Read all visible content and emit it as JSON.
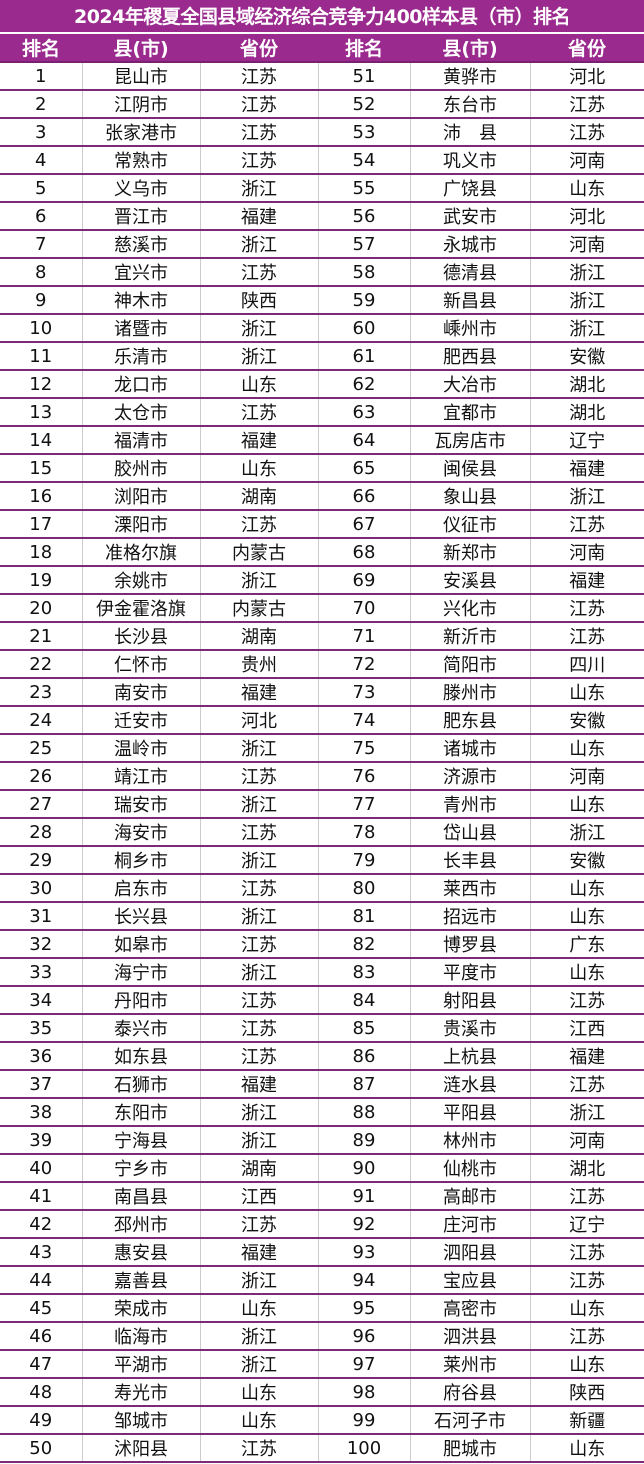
{
  "title": "2024年稷夏全国县域经济综合竞争力400样本县（市）排名",
  "headers": [
    "排名",
    "县(市)",
    "省份",
    "排名",
    "县(市)",
    "省份"
  ],
  "colors": {
    "header_bg": "#9a2a8e",
    "row_line": "#7a2a78"
  },
  "left": [
    [
      "1",
      "昆山市",
      "江苏"
    ],
    [
      "2",
      "江阴市",
      "江苏"
    ],
    [
      "3",
      "张家港市",
      "江苏"
    ],
    [
      "4",
      "常熟市",
      "江苏"
    ],
    [
      "5",
      "义乌市",
      "浙江"
    ],
    [
      "6",
      "晋江市",
      "福建"
    ],
    [
      "7",
      "慈溪市",
      "浙江"
    ],
    [
      "8",
      "宜兴市",
      "江苏"
    ],
    [
      "9",
      "神木市",
      "陕西"
    ],
    [
      "10",
      "诸暨市",
      "浙江"
    ],
    [
      "11",
      "乐清市",
      "浙江"
    ],
    [
      "12",
      "龙口市",
      "山东"
    ],
    [
      "13",
      "太仓市",
      "江苏"
    ],
    [
      "14",
      "福清市",
      "福建"
    ],
    [
      "15",
      "胶州市",
      "山东"
    ],
    [
      "16",
      "浏阳市",
      "湖南"
    ],
    [
      "17",
      "溧阳市",
      "江苏"
    ],
    [
      "18",
      "准格尔旗",
      "内蒙古"
    ],
    [
      "19",
      "余姚市",
      "浙江"
    ],
    [
      "20",
      "伊金霍洛旗",
      "内蒙古"
    ],
    [
      "21",
      "长沙县",
      "湖南"
    ],
    [
      "22",
      "仁怀市",
      "贵州"
    ],
    [
      "23",
      "南安市",
      "福建"
    ],
    [
      "24",
      "迁安市",
      "河北"
    ],
    [
      "25",
      "温岭市",
      "浙江"
    ],
    [
      "26",
      "靖江市",
      "江苏"
    ],
    [
      "27",
      "瑞安市",
      "浙江"
    ],
    [
      "28",
      "海安市",
      "江苏"
    ],
    [
      "29",
      "桐乡市",
      "浙江"
    ],
    [
      "30",
      "启东市",
      "江苏"
    ],
    [
      "31",
      "长兴县",
      "浙江"
    ],
    [
      "32",
      "如皋市",
      "江苏"
    ],
    [
      "33",
      "海宁市",
      "浙江"
    ],
    [
      "34",
      "丹阳市",
      "江苏"
    ],
    [
      "35",
      "泰兴市",
      "江苏"
    ],
    [
      "36",
      "如东县",
      "江苏"
    ],
    [
      "37",
      "石狮市",
      "福建"
    ],
    [
      "38",
      "东阳市",
      "浙江"
    ],
    [
      "39",
      "宁海县",
      "浙江"
    ],
    [
      "40",
      "宁乡市",
      "湖南"
    ],
    [
      "41",
      "南昌县",
      "江西"
    ],
    [
      "42",
      "邳州市",
      "江苏"
    ],
    [
      "43",
      "惠安县",
      "福建"
    ],
    [
      "44",
      "嘉善县",
      "浙江"
    ],
    [
      "45",
      "荣成市",
      "山东"
    ],
    [
      "46",
      "临海市",
      "浙江"
    ],
    [
      "47",
      "平湖市",
      "浙江"
    ],
    [
      "48",
      "寿光市",
      "山东"
    ],
    [
      "49",
      "邹城市",
      "山东"
    ],
    [
      "50",
      "沭阳县",
      "江苏"
    ]
  ],
  "right": [
    [
      "51",
      "黄骅市",
      "河北"
    ],
    [
      "52",
      "东台市",
      "江苏"
    ],
    [
      "53",
      "沛　县",
      "江苏"
    ],
    [
      "54",
      "巩义市",
      "河南"
    ],
    [
      "55",
      "广饶县",
      "山东"
    ],
    [
      "56",
      "武安市",
      "河北"
    ],
    [
      "57",
      "永城市",
      "河南"
    ],
    [
      "58",
      "德清县",
      "浙江"
    ],
    [
      "59",
      "新昌县",
      "浙江"
    ],
    [
      "60",
      "嵊州市",
      "浙江"
    ],
    [
      "61",
      "肥西县",
      "安徽"
    ],
    [
      "62",
      "大冶市",
      "湖北"
    ],
    [
      "63",
      "宜都市",
      "湖北"
    ],
    [
      "64",
      "瓦房店市",
      "辽宁"
    ],
    [
      "65",
      "闽侯县",
      "福建"
    ],
    [
      "66",
      "象山县",
      "浙江"
    ],
    [
      "67",
      "仪征市",
      "江苏"
    ],
    [
      "68",
      "新郑市",
      "河南"
    ],
    [
      "69",
      "安溪县",
      "福建"
    ],
    [
      "70",
      "兴化市",
      "江苏"
    ],
    [
      "71",
      "新沂市",
      "江苏"
    ],
    [
      "72",
      "简阳市",
      "四川"
    ],
    [
      "73",
      "滕州市",
      "山东"
    ],
    [
      "74",
      "肥东县",
      "安徽"
    ],
    [
      "75",
      "诸城市",
      "山东"
    ],
    [
      "76",
      "济源市",
      "河南"
    ],
    [
      "77",
      "青州市",
      "山东"
    ],
    [
      "78",
      "岱山县",
      "浙江"
    ],
    [
      "79",
      "长丰县",
      "安徽"
    ],
    [
      "80",
      "莱西市",
      "山东"
    ],
    [
      "81",
      "招远市",
      "山东"
    ],
    [
      "82",
      "博罗县",
      "广东"
    ],
    [
      "83",
      "平度市",
      "山东"
    ],
    [
      "84",
      "射阳县",
      "江苏"
    ],
    [
      "85",
      "贵溪市",
      "江西"
    ],
    [
      "86",
      "上杭县",
      "福建"
    ],
    [
      "87",
      "涟水县",
      "江苏"
    ],
    [
      "88",
      "平阳县",
      "浙江"
    ],
    [
      "89",
      "林州市",
      "河南"
    ],
    [
      "90",
      "仙桃市",
      "湖北"
    ],
    [
      "91",
      "高邮市",
      "江苏"
    ],
    [
      "92",
      "庄河市",
      "辽宁"
    ],
    [
      "93",
      "泗阳县",
      "江苏"
    ],
    [
      "94",
      "宝应县",
      "江苏"
    ],
    [
      "95",
      "高密市",
      "山东"
    ],
    [
      "96",
      "泗洪县",
      "江苏"
    ],
    [
      "97",
      "莱州市",
      "山东"
    ],
    [
      "98",
      "府谷县",
      "陕西"
    ],
    [
      "99",
      "石河子市",
      "新疆"
    ],
    [
      "100",
      "肥城市",
      "山东"
    ]
  ]
}
